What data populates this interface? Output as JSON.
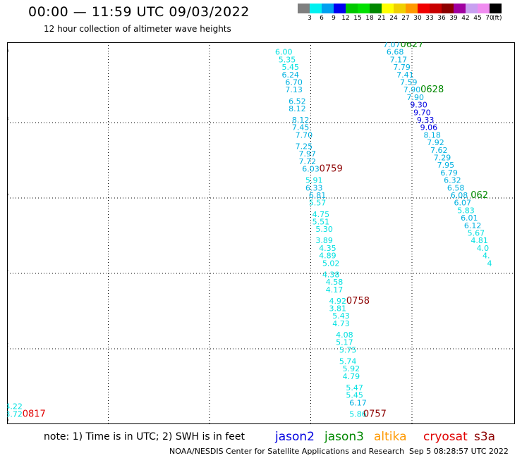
{
  "header": {
    "title": "00:00 — 11:59 UTC 09/03/2022",
    "subtitle": "12 hour collection of altimeter wave heights"
  },
  "colorbar": {
    "colors": [
      "#7f7f7f",
      "#00f0f0",
      "#00a0f0",
      "#0000f0",
      "#00c800",
      "#00e000",
      "#008800",
      "#ffff00",
      "#f0d000",
      "#ff9900",
      "#f00000",
      "#c80000",
      "#8c0000",
      "#a000a0",
      "#c8a0f0",
      "#f08cf0",
      "#000000"
    ],
    "labels": [
      "3",
      "6",
      "9",
      "12",
      "15",
      "18",
      "21",
      "24",
      "27",
      "30",
      "33",
      "36",
      "39",
      "42",
      "45",
      "70"
    ],
    "unit": "(ft)"
  },
  "chart_data": {
    "type": "map",
    "xlim": [
      -165,
      -154
    ],
    "ylim": [
      30,
      40
    ],
    "x_ticks": [
      "-165",
      "-162",
      "-159",
      "-156",
      "-153",
      "-154"
    ],
    "y_ticks": [
      "30",
      "32",
      "34",
      "36",
      "38",
      "40"
    ],
    "grid": true,
    "tracks": [
      {
        "points": [
          {
            "lat": 39.8,
            "lon": -156.8,
            "v": "6.00",
            "c": "#00e0e0"
          },
          {
            "lat": 39.6,
            "lon": -156.7,
            "v": "5.35",
            "c": "#00e0e0"
          },
          {
            "lat": 39.4,
            "lon": -156.6,
            "v": "5.45",
            "c": "#00e0e0"
          },
          {
            "lat": 39.2,
            "lon": -156.6,
            "v": "6.24",
            "c": "#00b0e0"
          },
          {
            "lat": 39.0,
            "lon": -156.5,
            "v": "6.70",
            "c": "#00b0e0"
          },
          {
            "lat": 38.8,
            "lon": -156.5,
            "v": "7.13",
            "c": "#00b0e0"
          },
          {
            "lat": 38.5,
            "lon": -156.4,
            "v": "6.52",
            "c": "#00b0e0"
          },
          {
            "lat": 38.3,
            "lon": -156.4,
            "v": "8.12",
            "c": "#00b0e0"
          },
          {
            "lat": 38.0,
            "lon": -156.3,
            "v": "8.12",
            "c": "#00b0e0"
          },
          {
            "lat": 37.8,
            "lon": -156.3,
            "v": "7.45",
            "c": "#00b0e0"
          },
          {
            "lat": 37.6,
            "lon": -156.2,
            "v": "7.70",
            "c": "#00b0e0"
          },
          {
            "lat": 37.3,
            "lon": -156.2,
            "v": "7.25",
            "c": "#00b0e0"
          },
          {
            "lat": 37.1,
            "lon": -156.1,
            "v": "7.97",
            "c": "#00b0e0"
          },
          {
            "lat": 36.9,
            "lon": -156.1,
            "v": "7.72",
            "c": "#00b0e0"
          },
          {
            "lat": 36.7,
            "lon": -156.0,
            "v": "6.03",
            "c": "#00b0e0"
          },
          {
            "lat": 36.4,
            "lon": -155.9,
            "v": "5.91",
            "c": "#00e0e0"
          },
          {
            "lat": 36.2,
            "lon": -155.9,
            "v": "6.33",
            "c": "#00b0e0"
          },
          {
            "lat": 36.0,
            "lon": -155.8,
            "v": "6.81",
            "c": "#00b0e0"
          },
          {
            "lat": 35.8,
            "lon": -155.8,
            "v": "5.57",
            "c": "#00e0e0"
          },
          {
            "lat": 35.5,
            "lon": -155.7,
            "v": "4.75",
            "c": "#00e0e0"
          },
          {
            "lat": 35.3,
            "lon": -155.7,
            "v": "5.51",
            "c": "#00e0e0"
          },
          {
            "lat": 35.1,
            "lon": -155.6,
            "v": "5.30",
            "c": "#00e0e0"
          },
          {
            "lat": 34.8,
            "lon": -155.6,
            "v": "3.89",
            "c": "#00e0e0"
          },
          {
            "lat": 34.6,
            "lon": -155.5,
            "v": "4.35",
            "c": "#00e0e0"
          },
          {
            "lat": 34.4,
            "lon": -155.5,
            "v": "4.89",
            "c": "#00e0e0"
          },
          {
            "lat": 34.2,
            "lon": -155.4,
            "v": "5.02",
            "c": "#00e0e0"
          },
          {
            "lat": 33.9,
            "lon": -155.4,
            "v": "4.38",
            "c": "#00e0e0"
          },
          {
            "lat": 33.7,
            "lon": -155.3,
            "v": "4.58",
            "c": "#00e0e0"
          },
          {
            "lat": 33.5,
            "lon": -155.3,
            "v": "4.17",
            "c": "#00e0e0"
          },
          {
            "lat": 33.2,
            "lon": -155.2,
            "v": "4.92",
            "c": "#00e0e0"
          },
          {
            "lat": 33.0,
            "lon": -155.2,
            "v": "3.81",
            "c": "#00e0e0"
          },
          {
            "lat": 32.8,
            "lon": -155.1,
            "v": "5.43",
            "c": "#00e0e0"
          },
          {
            "lat": 32.6,
            "lon": -155.1,
            "v": "4.73",
            "c": "#00e0e0"
          },
          {
            "lat": 32.3,
            "lon": -155.0,
            "v": "4.08",
            "c": "#00e0e0"
          },
          {
            "lat": 32.1,
            "lon": -155.0,
            "v": "5.17",
            "c": "#00e0e0"
          },
          {
            "lat": 31.9,
            "lon": -154.9,
            "v": "5.75",
            "c": "#00e0e0"
          },
          {
            "lat": 31.6,
            "lon": -154.9,
            "v": "5.74",
            "c": "#00e0e0"
          },
          {
            "lat": 31.4,
            "lon": -154.8,
            "v": "5.92",
            "c": "#00e0e0"
          },
          {
            "lat": 31.2,
            "lon": -154.8,
            "v": "4.79",
            "c": "#00e0e0"
          },
          {
            "lat": 30.9,
            "lon": -154.7,
            "v": "5.47",
            "c": "#00e0e0"
          },
          {
            "lat": 30.7,
            "lon": -154.7,
            "v": "5.45",
            "c": "#00e0e0"
          },
          {
            "lat": 30.5,
            "lon": -154.6,
            "v": "6.17",
            "c": "#00b0e0"
          },
          {
            "lat": 30.2,
            "lon": -154.6,
            "v": "5.86",
            "c": "#00e0e0"
          }
        ],
        "times": [
          {
            "lat": 36.7,
            "lon": -155.4,
            "t": "0759",
            "c": "#8c0000"
          },
          {
            "lat": 33.2,
            "lon": -154.6,
            "t": "0758",
            "c": "#8c0000"
          },
          {
            "lat": 30.2,
            "lon": -154.1,
            "t": "0757",
            "c": "#8c0000"
          }
        ]
      },
      {
        "points": [
          {
            "lat": 40.0,
            "lon": -153.6,
            "v": "7.07",
            "c": "#00b0e0"
          },
          {
            "lat": 39.8,
            "lon": -153.5,
            "v": "6.68",
            "c": "#00b0e0"
          },
          {
            "lat": 39.6,
            "lon": -153.4,
            "v": "7.17",
            "c": "#00b0e0"
          },
          {
            "lat": 39.4,
            "lon": -153.3,
            "v": "7.79",
            "c": "#00b0e0"
          },
          {
            "lat": 39.2,
            "lon": -153.2,
            "v": "7.41",
            "c": "#00b0e0"
          },
          {
            "lat": 39.0,
            "lon": -153.1,
            "v": "7.59",
            "c": "#00b0e0"
          },
          {
            "lat": 38.8,
            "lon": -153.0,
            "v": "7.90",
            "c": "#00b0e0"
          },
          {
            "lat": 38.6,
            "lon": -152.9,
            "v": "7.90",
            "c": "#00b0e0"
          },
          {
            "lat": 38.4,
            "lon": -152.8,
            "v": "9.30",
            "c": "#0000e0"
          },
          {
            "lat": 38.2,
            "lon": -152.7,
            "v": "9.70",
            "c": "#0000e0"
          },
          {
            "lat": 38.0,
            "lon": -152.6,
            "v": "9.33",
            "c": "#0000e0"
          },
          {
            "lat": 37.8,
            "lon": -152.5,
            "v": "9.06",
            "c": "#0000e0"
          },
          {
            "lat": 37.6,
            "lon": -152.4,
            "v": "8.18",
            "c": "#00b0e0"
          },
          {
            "lat": 37.4,
            "lon": -152.3,
            "v": "7.92",
            "c": "#00b0e0"
          },
          {
            "lat": 37.2,
            "lon": -152.2,
            "v": "7.62",
            "c": "#00b0e0"
          },
          {
            "lat": 37.0,
            "lon": -152.1,
            "v": "7.29",
            "c": "#00b0e0"
          },
          {
            "lat": 36.8,
            "lon": -152.0,
            "v": "7.95",
            "c": "#00b0e0"
          },
          {
            "lat": 36.6,
            "lon": -151.9,
            "v": "6.79",
            "c": "#00b0e0"
          },
          {
            "lat": 36.4,
            "lon": -151.8,
            "v": "6.32",
            "c": "#00b0e0"
          },
          {
            "lat": 36.2,
            "lon": -151.7,
            "v": "6.58",
            "c": "#00b0e0"
          },
          {
            "lat": 36.0,
            "lon": -151.6,
            "v": "6.08",
            "c": "#00b0e0"
          },
          {
            "lat": 35.8,
            "lon": -151.5,
            "v": "6.07",
            "c": "#00b0e0"
          },
          {
            "lat": 35.6,
            "lon": -151.4,
            "v": "5.83",
            "c": "#00e0e0"
          },
          {
            "lat": 35.4,
            "lon": -151.3,
            "v": "6.01",
            "c": "#00b0e0"
          },
          {
            "lat": 35.2,
            "lon": -151.2,
            "v": "6.12",
            "c": "#00b0e0"
          },
          {
            "lat": 35.0,
            "lon": -151.1,
            "v": "5.67",
            "c": "#00e0e0"
          },
          {
            "lat": 34.8,
            "lon": -151.0,
            "v": "4.81",
            "c": "#00e0e0"
          },
          {
            "lat": 34.6,
            "lon": -150.9,
            "v": "4.0",
            "c": "#00e0e0"
          },
          {
            "lat": 34.4,
            "lon": -150.8,
            "v": "4.",
            "c": "#00e0e0"
          },
          {
            "lat": 34.2,
            "lon": -150.7,
            "v": "4",
            "c": "#00e0e0"
          }
        ],
        "times": [
          {
            "lat": 40.0,
            "lon": -153.0,
            "t": "0627",
            "c": "#008800"
          },
          {
            "lat": 38.8,
            "lon": -152.4,
            "t": "0628",
            "c": "#008800"
          },
          {
            "lat": 36.0,
            "lon": -151.0,
            "t": "062",
            "c": "#008800"
          }
        ]
      },
      {
        "points": [
          {
            "lat": 30.4,
            "lon": -164.8,
            "v": "4.22",
            "c": "#00e0e0"
          },
          {
            "lat": 30.2,
            "lon": -164.8,
            "v": "3.72",
            "c": "#00e0e0"
          }
        ],
        "times": [
          {
            "lat": 30.2,
            "lon": -164.2,
            "t": "0817",
            "c": "#e00000"
          }
        ]
      }
    ]
  },
  "footer": {
    "note": "note: 1) Time is in UTC; 2) SWH is in feet",
    "legend": [
      {
        "label": "jason2",
        "color": "#0000e0"
      },
      {
        "label": "jason3",
        "color": "#008800"
      },
      {
        "label": "altika",
        "color": "#ff9900"
      },
      {
        "label": "cryosat",
        "color": "#e00000"
      },
      {
        "label": "s3a",
        "color": "#8c0000"
      }
    ],
    "credit": "NOAA/NESDIS Center for Satellite Applications and Research",
    "timestamp": "Sep  5 08:28:57 UTC 2022"
  }
}
